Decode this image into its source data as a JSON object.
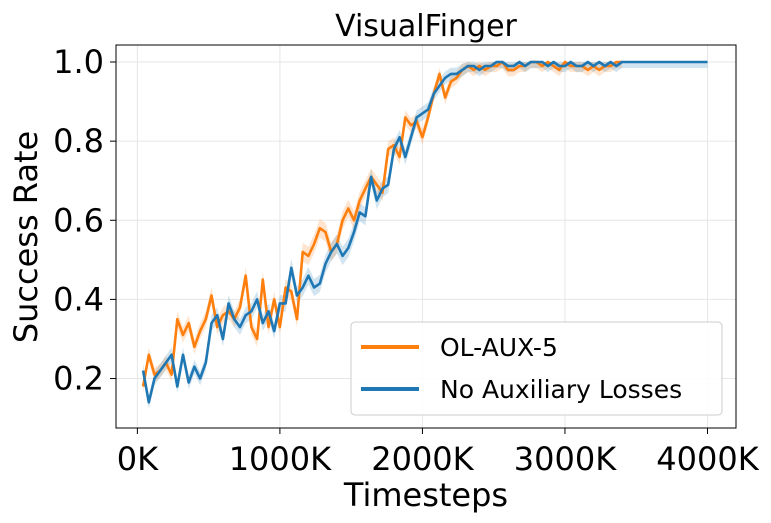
{
  "chart_data": {
    "type": "line",
    "title": "VisualFinger",
    "xlabel": "Timesteps",
    "ylabel": "Success Rate",
    "xlim": [
      -150000,
      4200000
    ],
    "ylim": [
      0.075,
      1.043
    ],
    "xticks": [
      0,
      1000000,
      2000000,
      3000000,
      4000000
    ],
    "xtick_labels": [
      "0K",
      "1000K",
      "2000K",
      "3000K",
      "4000K"
    ],
    "yticks": [
      0.2,
      0.4,
      0.6,
      0.8,
      1.0
    ],
    "ytick_labels": [
      "0.2",
      "0.4",
      "0.6",
      "0.8",
      "1.0"
    ],
    "grid": true,
    "legend_position": "lower-right",
    "series": [
      {
        "name": "OL-AUX-5",
        "color": "#ff7f0e",
        "x": [
          40000,
          80000,
          120000,
          160000,
          200000,
          240000,
          280000,
          320000,
          360000,
          400000,
          440000,
          480000,
          520000,
          560000,
          600000,
          640000,
          680000,
          720000,
          760000,
          800000,
          840000,
          880000,
          920000,
          960000,
          1000000,
          1040000,
          1080000,
          1120000,
          1160000,
          1200000,
          1240000,
          1280000,
          1320000,
          1360000,
          1400000,
          1440000,
          1480000,
          1520000,
          1560000,
          1600000,
          1640000,
          1680000,
          1720000,
          1760000,
          1800000,
          1840000,
          1880000,
          1920000,
          1960000,
          2000000,
          2040000,
          2080000,
          2120000,
          2160000,
          2200000,
          2240000,
          2280000,
          2320000,
          2360000,
          2400000,
          2440000,
          2480000,
          2520000,
          2560000,
          2600000,
          2640000,
          2680000,
          2720000,
          2760000,
          2800000,
          2840000,
          2880000,
          2920000,
          2960000,
          3000000,
          3040000,
          3080000,
          3120000,
          3160000,
          3200000,
          3240000,
          3280000,
          3320000,
          3360000,
          3400000
        ],
        "y": [
          0.18,
          0.26,
          0.21,
          0.22,
          0.24,
          0.21,
          0.35,
          0.31,
          0.34,
          0.28,
          0.32,
          0.35,
          0.41,
          0.33,
          0.36,
          0.37,
          0.35,
          0.38,
          0.46,
          0.33,
          0.3,
          0.45,
          0.33,
          0.4,
          0.33,
          0.43,
          0.42,
          0.35,
          0.52,
          0.51,
          0.54,
          0.58,
          0.57,
          0.52,
          0.54,
          0.6,
          0.63,
          0.6,
          0.65,
          0.68,
          0.71,
          0.69,
          0.67,
          0.78,
          0.79,
          0.76,
          0.86,
          0.84,
          0.85,
          0.81,
          0.86,
          0.92,
          0.97,
          0.91,
          0.95,
          0.96,
          0.98,
          0.99,
          0.98,
          0.99,
          0.98,
          0.99,
          0.99,
          1.0,
          0.98,
          0.98,
          0.99,
          0.99,
          1.0,
          1.0,
          0.99,
          1.0,
          0.99,
          0.98,
          1.0,
          0.99,
          0.99,
          0.99,
          0.98,
          0.99,
          0.98,
          0.99,
          0.99,
          1.0,
          1.0
        ]
      },
      {
        "name": "No Auxiliary Losses",
        "color": "#1f77b4",
        "x": [
          40000,
          80000,
          120000,
          160000,
          200000,
          240000,
          280000,
          320000,
          360000,
          400000,
          440000,
          480000,
          520000,
          560000,
          600000,
          640000,
          680000,
          720000,
          760000,
          800000,
          840000,
          880000,
          920000,
          960000,
          1000000,
          1040000,
          1080000,
          1120000,
          1160000,
          1200000,
          1240000,
          1280000,
          1320000,
          1360000,
          1400000,
          1440000,
          1480000,
          1520000,
          1560000,
          1600000,
          1640000,
          1680000,
          1720000,
          1760000,
          1800000,
          1840000,
          1880000,
          1920000,
          1960000,
          2000000,
          2040000,
          2080000,
          2120000,
          2160000,
          2200000,
          2240000,
          2280000,
          2320000,
          2360000,
          2400000,
          2440000,
          2480000,
          2520000,
          2560000,
          2600000,
          2640000,
          2680000,
          2720000,
          2760000,
          2800000,
          2840000,
          2880000,
          2920000,
          2960000,
          3000000,
          3040000,
          3080000,
          3120000,
          3160000,
          3200000,
          3240000,
          3280000,
          3320000,
          3360000,
          3400000,
          3440000,
          3480000,
          3520000,
          3560000,
          3600000,
          3640000,
          3680000,
          3720000,
          3760000,
          3800000,
          3840000,
          3880000,
          3920000,
          3960000,
          4000000
        ],
        "y": [
          0.22,
          0.14,
          0.2,
          0.22,
          0.24,
          0.26,
          0.18,
          0.26,
          0.19,
          0.23,
          0.2,
          0.24,
          0.34,
          0.36,
          0.3,
          0.39,
          0.35,
          0.33,
          0.36,
          0.37,
          0.4,
          0.34,
          0.37,
          0.32,
          0.39,
          0.39,
          0.48,
          0.41,
          0.43,
          0.46,
          0.43,
          0.44,
          0.49,
          0.52,
          0.54,
          0.51,
          0.53,
          0.57,
          0.62,
          0.61,
          0.71,
          0.65,
          0.68,
          0.69,
          0.78,
          0.81,
          0.76,
          0.81,
          0.86,
          0.87,
          0.88,
          0.92,
          0.94,
          0.96,
          0.97,
          0.97,
          0.98,
          0.99,
          0.99,
          0.98,
          0.99,
          0.99,
          1.0,
          1.0,
          0.99,
          0.99,
          1.0,
          0.99,
          1.0,
          1.0,
          1.0,
          0.99,
          1.0,
          0.99,
          0.99,
          1.0,
          0.99,
          0.99,
          1.0,
          0.99,
          1.0,
          0.99,
          1.0,
          0.99,
          1.0,
          1.0,
          1.0,
          1.0,
          1.0,
          1.0,
          1.0,
          1.0,
          1.0,
          1.0,
          1.0,
          1.0,
          1.0,
          1.0,
          1.0,
          1.0
        ]
      }
    ]
  }
}
